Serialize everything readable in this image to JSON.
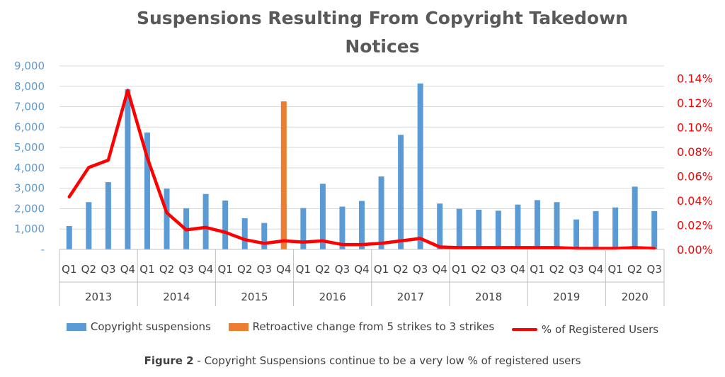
{
  "chart_data": {
    "type": "bar",
    "title": "Suspensions Resulting From Copyright Takedown Notices",
    "categories": [
      "Q1",
      "Q2",
      "Q3",
      "Q4",
      "Q1",
      "Q2",
      "Q3",
      "Q4",
      "Q1",
      "Q2",
      "Q3",
      "Q4",
      "Q1",
      "Q2",
      "Q3",
      "Q4",
      "Q1",
      "Q2",
      "Q3",
      "Q4",
      "Q1",
      "Q2",
      "Q3",
      "Q4",
      "Q1",
      "Q2",
      "Q3",
      "Q4",
      "Q1",
      "Q2",
      "Q3"
    ],
    "groups": [
      {
        "label": "2013",
        "count": 4
      },
      {
        "label": "2014",
        "count": 4
      },
      {
        "label": "2015",
        "count": 4
      },
      {
        "label": "2016",
        "count": 4
      },
      {
        "label": "2017",
        "count": 4
      },
      {
        "label": "2018",
        "count": 4
      },
      {
        "label": "2019",
        "count": 4
      },
      {
        "label": "2020",
        "count": 3
      }
    ],
    "series": [
      {
        "name": "Copyright suspensions",
        "kind": "bar",
        "axis": "left",
        "color": "#5b9bd5",
        "values": [
          1150,
          2320,
          3300,
          7850,
          5730,
          2980,
          2020,
          2720,
          2400,
          1530,
          1300,
          2250,
          2030,
          3220,
          2100,
          2380,
          3580,
          5620,
          8140,
          2250,
          1990,
          1950,
          1900,
          2200,
          2420,
          2320,
          1470,
          1880,
          2060,
          3080,
          1880
        ]
      },
      {
        "name": "Retroactive change from 5 strikes to 3 strikes",
        "kind": "bar",
        "axis": "left",
        "color": "#ed7d31",
        "values": [
          0,
          0,
          0,
          0,
          0,
          0,
          0,
          0,
          0,
          0,
          0,
          7260,
          0,
          0,
          0,
          0,
          0,
          0,
          0,
          0,
          0,
          0,
          0,
          0,
          0,
          0,
          0,
          0,
          0,
          0,
          0
        ]
      },
      {
        "name": "% of Registered Users",
        "kind": "line",
        "axis": "right",
        "color": "#ff0000",
        "values": [
          0.043,
          0.067,
          0.073,
          0.13,
          0.075,
          0.03,
          0.016,
          0.018,
          0.014,
          0.008,
          0.005,
          0.007,
          0.006,
          0.007,
          0.004,
          0.004,
          0.005,
          0.007,
          0.009,
          0.002,
          0.0015,
          0.0015,
          0.0015,
          0.0015,
          0.0015,
          0.0015,
          0.0008,
          0.0008,
          0.0008,
          0.0015,
          0.0008
        ]
      }
    ],
    "y_left": {
      "min": 0,
      "max": 9000,
      "step": 1000,
      "tick_labels": [
        "-",
        "1,000",
        "2,000",
        "3,000",
        "4,000",
        "5,000",
        "6,000",
        "7,000",
        "8,000",
        "9,000"
      ],
      "color": "#5b9bd5"
    },
    "y_right": {
      "min": 0,
      "max": 0.15,
      "step": 0.02,
      "tick_labels": [
        "0.00%",
        "0.02%",
        "0.04%",
        "0.06%",
        "0.08%",
        "0.10%",
        "0.12%",
        "0.14%"
      ],
      "color": "#ff0000"
    },
    "grid": true,
    "legend_position": "bottom",
    "colors": {
      "gridline": "#d9d9d9",
      "axis_line": "#bfbfbf",
      "category_text": "#404040"
    }
  },
  "caption": {
    "label": "Figure 2",
    "text": " - Copyright Suspensions continue to be a very low % of registered users"
  }
}
